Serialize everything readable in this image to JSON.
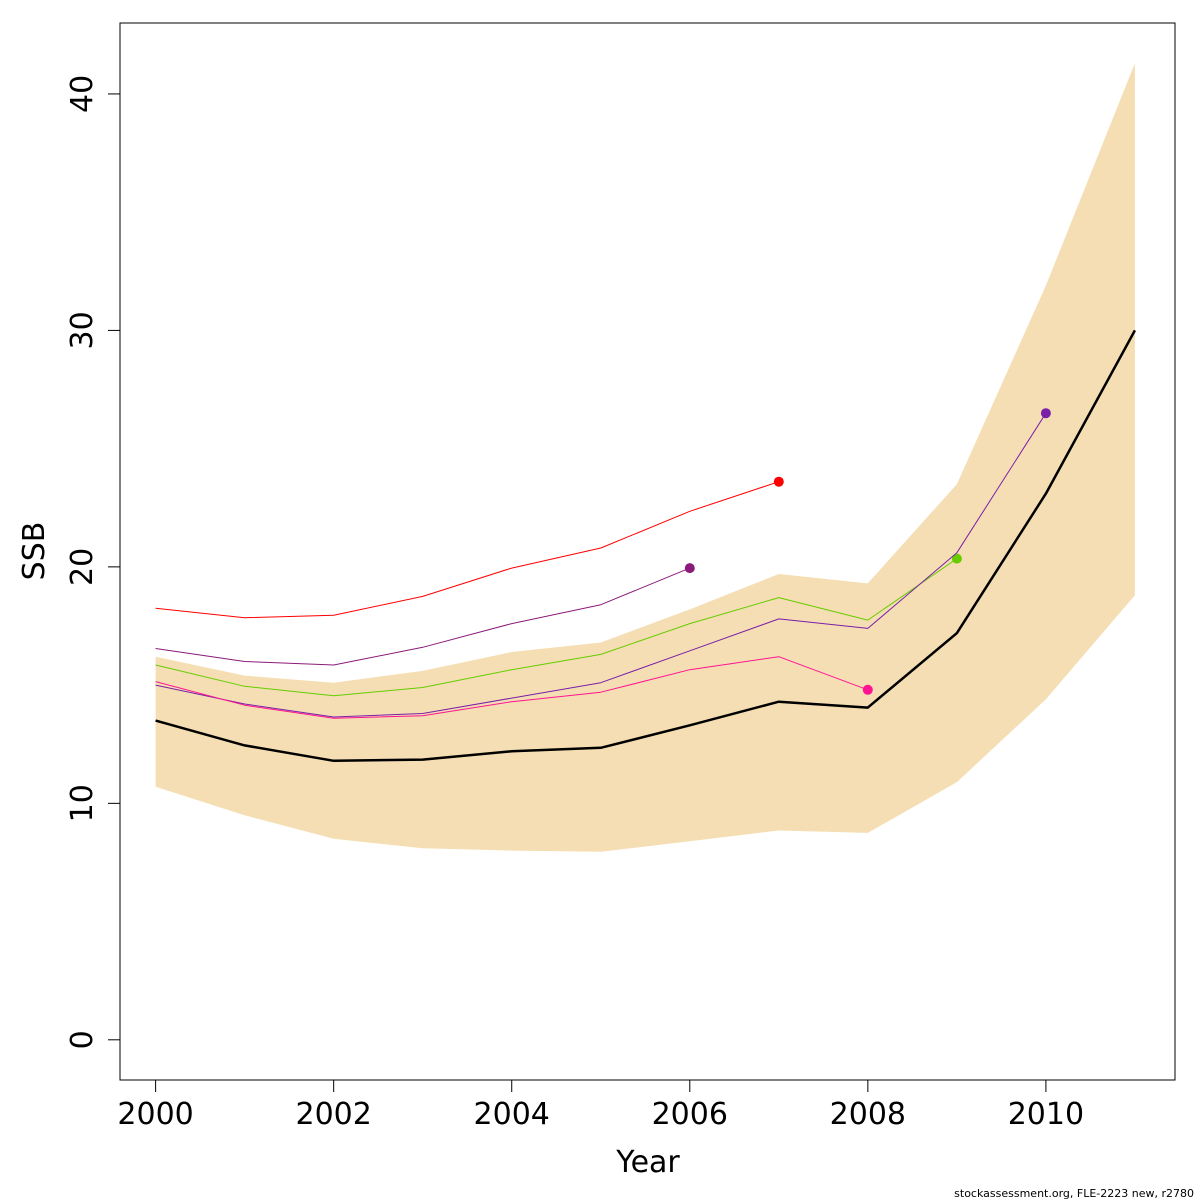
{
  "chart_data": {
    "type": "line",
    "title": "",
    "xlabel": "Year",
    "ylabel": "SSB",
    "xlim": [
      1999.6,
      2011.45
    ],
    "ylim": [
      -1.7,
      43.0
    ],
    "x_ticks": [
      2000,
      2002,
      2004,
      2006,
      2008,
      2010
    ],
    "y_ticks": [
      0,
      10,
      20,
      30,
      40
    ],
    "grid": false,
    "legend": "none",
    "band": {
      "color": "#f5deb3",
      "x": [
        2000,
        2001,
        2002,
        2003,
        2004,
        2005,
        2006,
        2007,
        2008,
        2009,
        2010,
        2011
      ],
      "lower": [
        10.7,
        9.5,
        8.5,
        8.1,
        8.0,
        7.95,
        8.4,
        8.85,
        8.75,
        10.9,
        14.4,
        18.8
      ],
      "upper": [
        16.2,
        15.4,
        15.1,
        15.6,
        16.4,
        16.8,
        18.2,
        19.7,
        19.3,
        23.5,
        31.9,
        41.3
      ]
    },
    "series": [
      {
        "color": "#000000",
        "width": 2.5,
        "x": [
          2000,
          2001,
          2002,
          2003,
          2004,
          2005,
          2006,
          2007,
          2008,
          2009,
          2010,
          2011
        ],
        "values": [
          13.5,
          12.45,
          11.8,
          11.85,
          12.2,
          12.35,
          13.3,
          14.3,
          14.05,
          17.2,
          23.1,
          30.0
        ],
        "end_marker": false
      },
      {
        "color": "#ff0000",
        "width": 1,
        "x": [
          2000,
          2001,
          2002,
          2003,
          2004,
          2005,
          2006,
          2007
        ],
        "values": [
          18.25,
          17.85,
          17.95,
          18.75,
          19.95,
          20.8,
          22.35,
          23.6
        ],
        "end_marker": true
      },
      {
        "color": "#8b1a7a",
        "width": 1,
        "x": [
          2000,
          2001,
          2002,
          2003,
          2004,
          2005,
          2006
        ],
        "values": [
          16.55,
          16.0,
          15.85,
          16.6,
          17.6,
          18.4,
          19.95
        ],
        "end_marker": true
      },
      {
        "color": "#66cc00",
        "width": 1,
        "x": [
          2000,
          2001,
          2002,
          2003,
          2004,
          2005,
          2006,
          2007,
          2008,
          2009
        ],
        "values": [
          15.85,
          14.95,
          14.55,
          14.9,
          15.65,
          16.3,
          17.6,
          18.7,
          17.75,
          20.35
        ],
        "end_marker": true
      },
      {
        "color": "#7a1fa8",
        "width": 1,
        "x": [
          2000,
          2001,
          2002,
          2003,
          2004,
          2005,
          2006,
          2007,
          2008,
          2009,
          2010
        ],
        "values": [
          15.0,
          14.2,
          13.65,
          13.8,
          14.45,
          15.1,
          16.45,
          17.8,
          17.4,
          20.6,
          26.5
        ],
        "end_marker": true
      },
      {
        "color": "#ff1493",
        "width": 1,
        "x": [
          2000,
          2001,
          2002,
          2003,
          2004,
          2005,
          2006,
          2007,
          2008
        ],
        "values": [
          15.15,
          14.15,
          13.6,
          13.7,
          14.3,
          14.7,
          15.65,
          16.2,
          14.8
        ],
        "end_marker": true
      }
    ]
  },
  "footnote": "stockassessment.org, FLE-2223 new, r2780"
}
